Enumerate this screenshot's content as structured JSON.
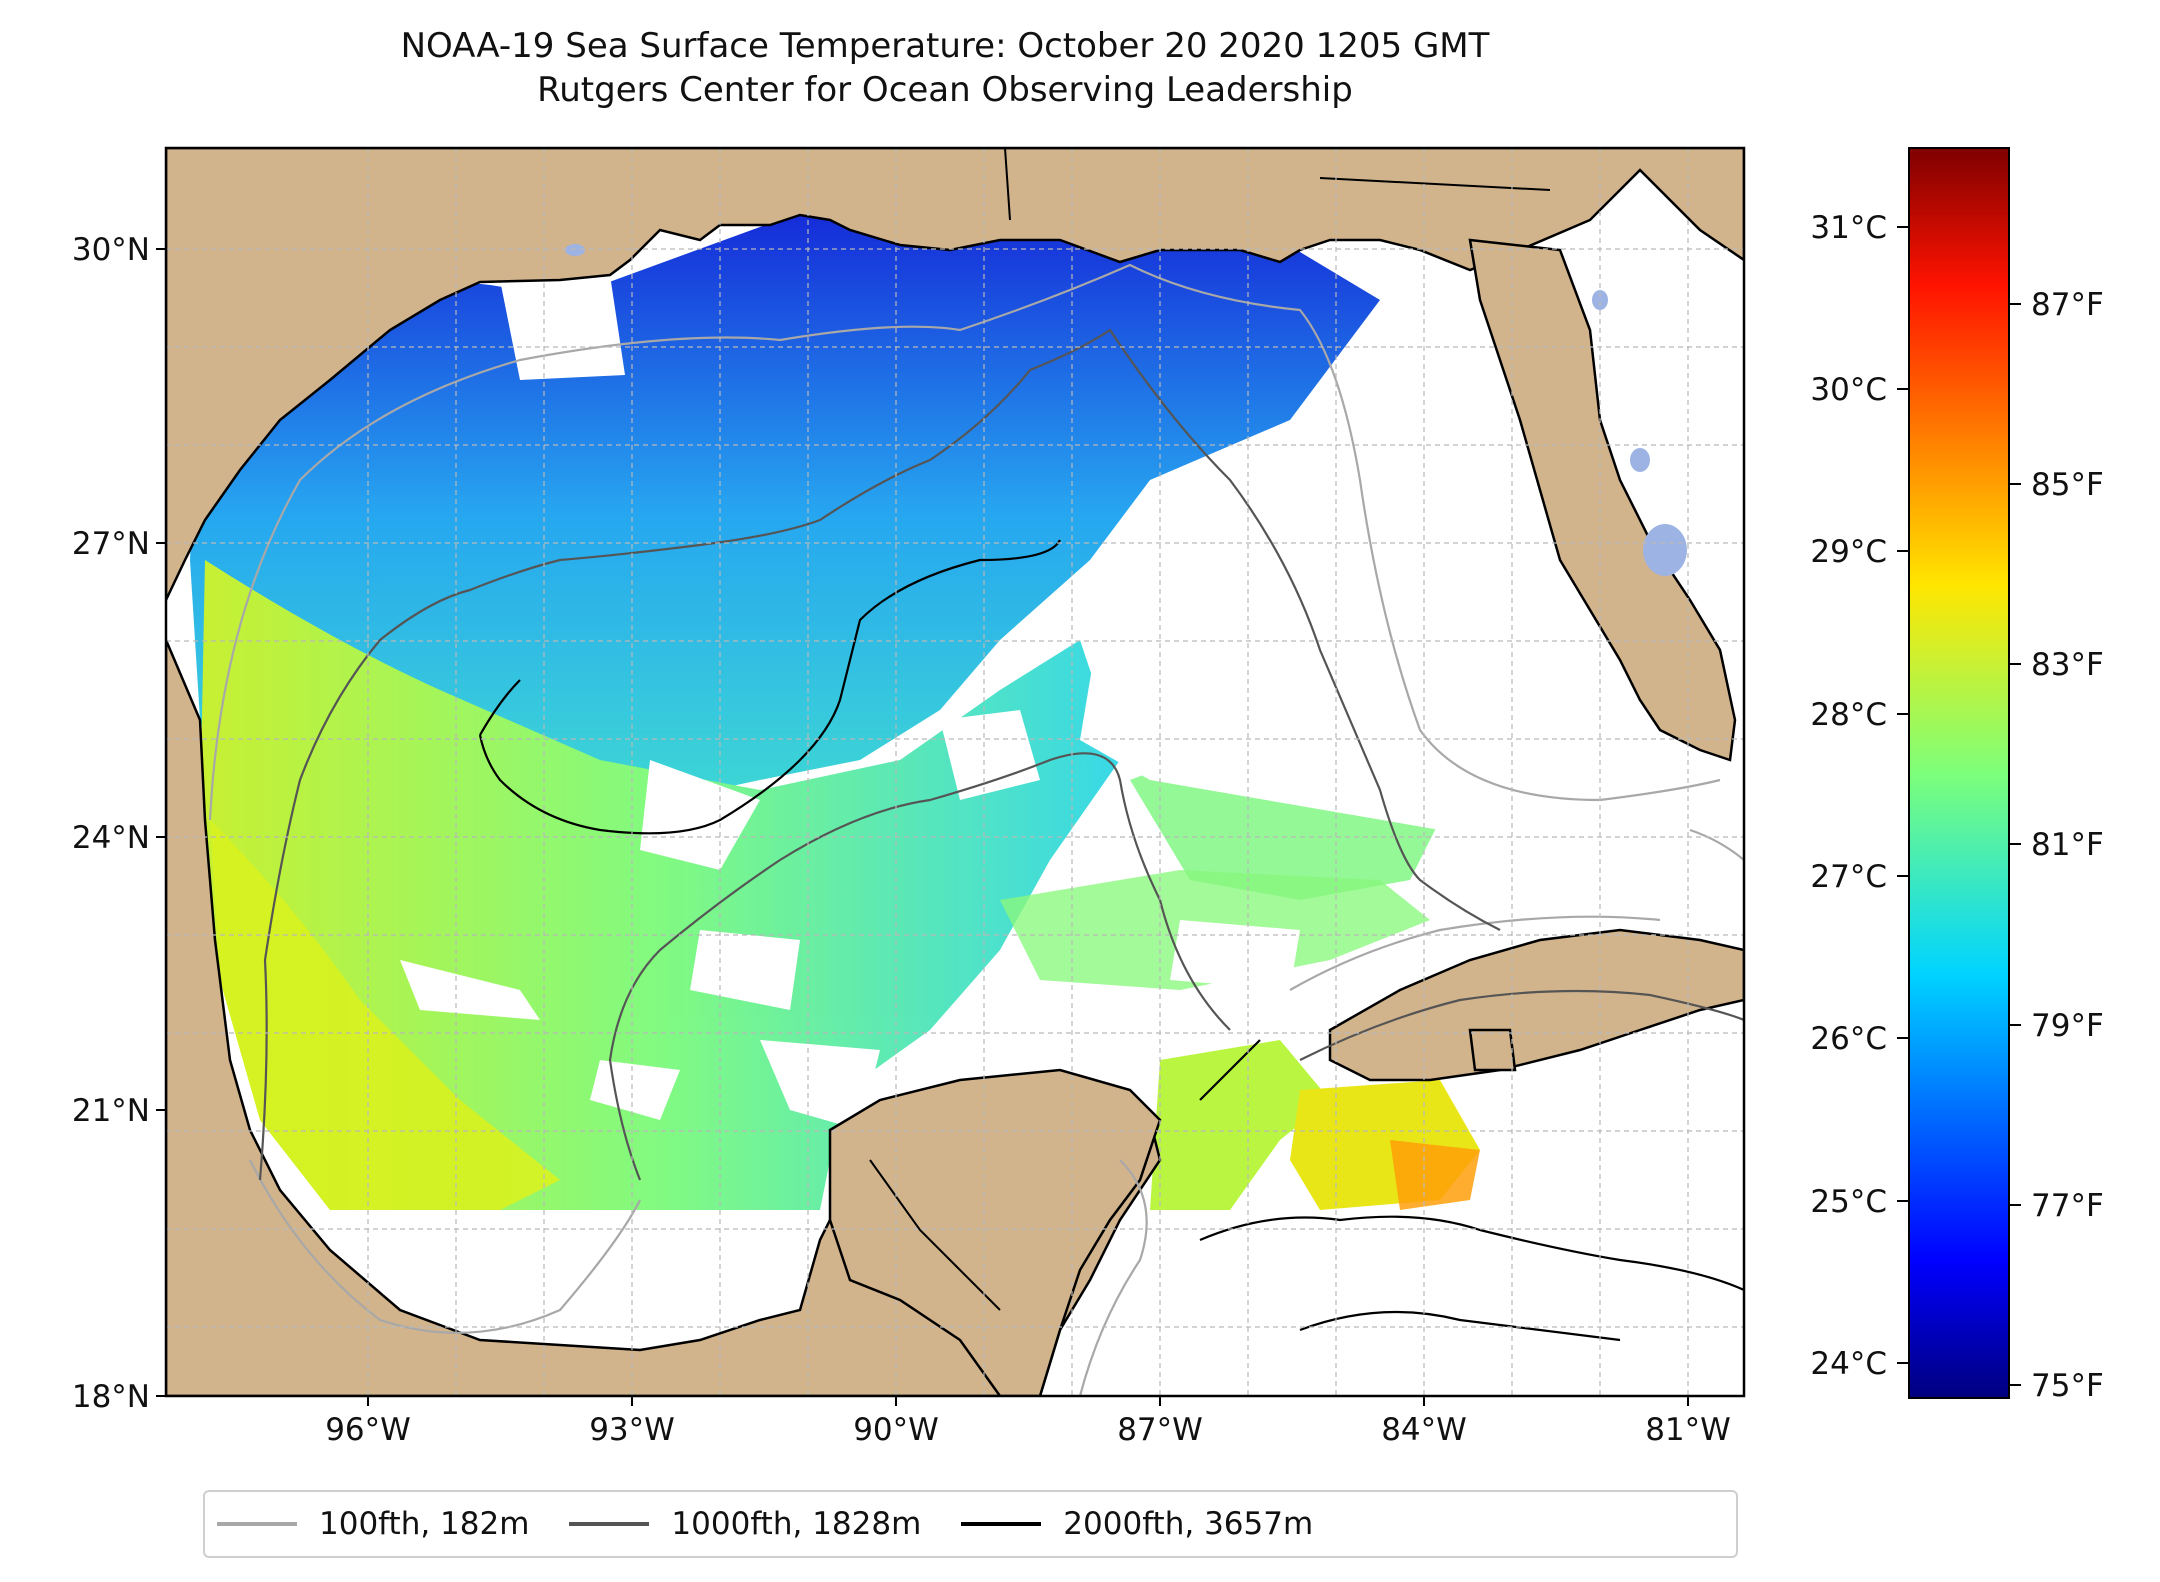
{
  "title": {
    "line1": "NOAA-19 Sea Surface Temperature: October 20 2020 1205 GMT",
    "line2": "Rutgers Center for Ocean Observing Leadership"
  },
  "map": {
    "lon_range": [
      -98,
      -80
    ],
    "lat_range": [
      18,
      31
    ],
    "lon_ticks": [
      "96°W",
      "93°W",
      "90°W",
      "87°W",
      "84°W",
      "81°W"
    ],
    "lat_ticks": [
      "18°N",
      "21°N",
      "24°N",
      "27°N",
      "30°N"
    ],
    "land_color": "#d2b48c",
    "lake_color": "#9db3e3",
    "gridlines": true
  },
  "colorbar": {
    "colormap": "jet",
    "celsius_ticks": [
      "24°C",
      "25°C",
      "26°C",
      "27°C",
      "28°C",
      "29°C",
      "30°C",
      "31°C"
    ],
    "fahrenheit_ticks": [
      "75°F",
      "77°F",
      "79°F",
      "81°F",
      "83°F",
      "85°F",
      "87°F"
    ],
    "range_celsius": [
      23.8,
      31.5
    ]
  },
  "legend": [
    {
      "label": "100fth, 182m",
      "color": "#a8a8a8"
    },
    {
      "label": "1000fth, 1828m",
      "color": "#555555"
    },
    {
      "label": "2000fth, 3657m",
      "color": "#000000"
    }
  ]
}
